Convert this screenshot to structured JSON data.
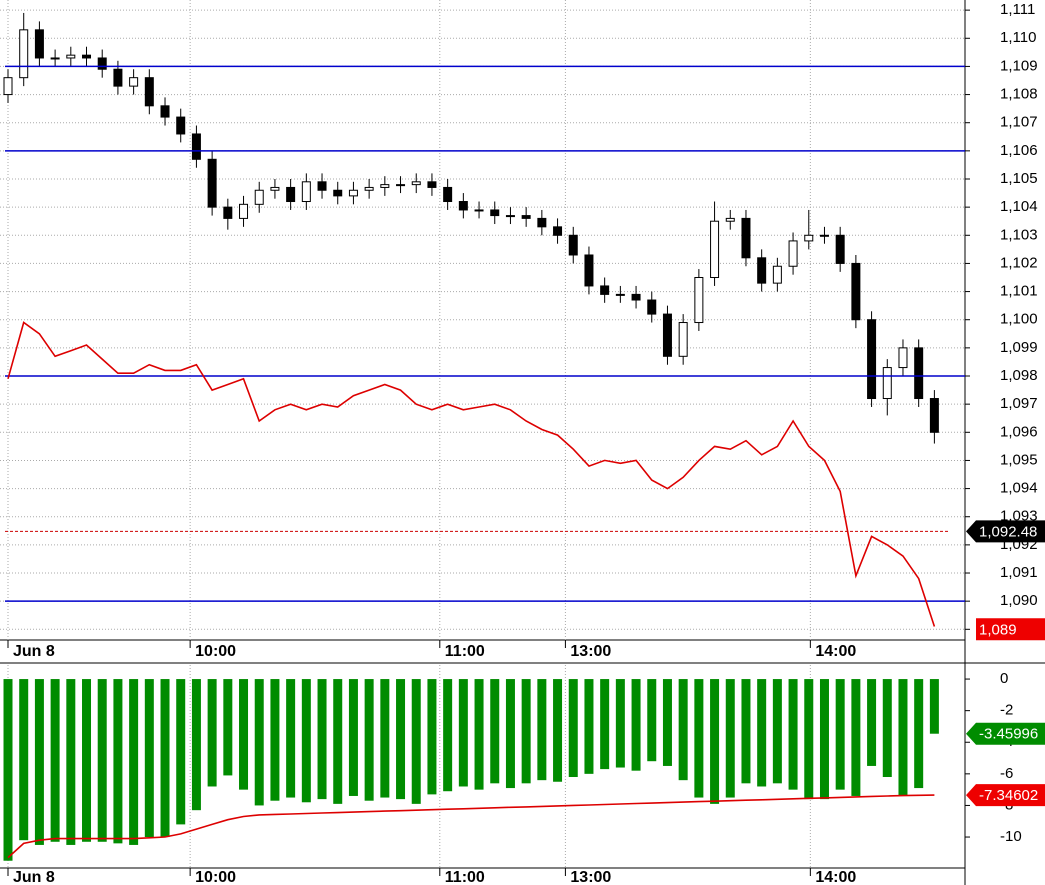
{
  "chart_data": [
    {
      "type": "candlestick",
      "xlim": [
        -0.51,
        60.95
      ],
      "xticks": [
        {
          "value": 0,
          "label": "Jun 8"
        },
        {
          "value": 11.6,
          "label": "10:00"
        },
        {
          "value": 27.5,
          "label": "11:00"
        },
        {
          "value": 35.5,
          "label": "13:00"
        },
        {
          "value": 51.1,
          "label": "14:00"
        }
      ],
      "ylim": [
        1088.62,
        1111.36
      ],
      "yticks": [
        {
          "value": 1089,
          "label": "1,089"
        },
        {
          "value": 1090,
          "label": "1,090"
        },
        {
          "value": 1091,
          "label": "1,091"
        },
        {
          "value": 1092,
          "label": "1,092"
        },
        {
          "value": 1093,
          "label": "1,093"
        },
        {
          "value": 1094,
          "label": "1,094"
        },
        {
          "value": 1095,
          "label": "1,095"
        },
        {
          "value": 1096,
          "label": "1,096"
        },
        {
          "value": 1097,
          "label": "1,097"
        },
        {
          "value": 1098,
          "label": "1,098"
        },
        {
          "value": 1099,
          "label": "1,099"
        },
        {
          "value": 1100,
          "label": "1,100"
        },
        {
          "value": 1101,
          "label": "1,101"
        },
        {
          "value": 1102,
          "label": "1,102"
        },
        {
          "value": 1103,
          "label": "1,103"
        },
        {
          "value": 1104,
          "label": "1,104"
        },
        {
          "value": 1105,
          "label": "1,105"
        },
        {
          "value": 1106,
          "label": "1,106"
        },
        {
          "value": 1107,
          "label": "1,107"
        },
        {
          "value": 1108,
          "label": "1,108"
        },
        {
          "value": 1109,
          "label": "1,109"
        },
        {
          "value": 1110,
          "label": "1,110"
        },
        {
          "value": 1111,
          "label": "1,111"
        }
      ],
      "grid": true,
      "open": [
        1108.0,
        1108.6,
        1110.3,
        1109.3,
        1109.3,
        1109.4,
        1109.3,
        1108.9,
        1108.3,
        1108.6,
        1107.6,
        1107.2,
        1106.6,
        1105.7,
        1104.0,
        1103.6,
        1104.1,
        1104.6,
        1104.7,
        1104.2,
        1104.9,
        1104.6,
        1104.4,
        1104.6,
        1104.7,
        1104.8,
        1104.8,
        1104.9,
        1104.7,
        1104.2,
        1103.9,
        1103.9,
        1103.7,
        1103.7,
        1103.6,
        1103.3,
        1103.0,
        1102.3,
        1101.2,
        1100.9,
        1100.9,
        1100.7,
        1100.2,
        1098.7,
        1099.9,
        1101.5,
        1103.5,
        1103.6,
        1102.2,
        1101.3,
        1101.9,
        1102.8,
        1103.0,
        1103.0,
        1102.0,
        1100.0,
        1097.2,
        1098.3,
        1099.0,
        1097.2
      ],
      "high": [
        1108.9,
        1110.9,
        1110.6,
        1109.6,
        1109.7,
        1109.7,
        1109.6,
        1109.2,
        1108.9,
        1108.9,
        1107.9,
        1107.5,
        1106.9,
        1106.0,
        1104.3,
        1104.4,
        1104.9,
        1105.0,
        1105.0,
        1105.2,
        1105.2,
        1104.9,
        1104.9,
        1105.0,
        1105.1,
        1105.1,
        1105.2,
        1105.2,
        1105.0,
        1104.5,
        1104.2,
        1104.2,
        1104.0,
        1104.0,
        1103.9,
        1103.6,
        1103.3,
        1102.6,
        1101.5,
        1101.2,
        1101.2,
        1101.0,
        1100.5,
        1100.2,
        1101.8,
        1104.2,
        1103.9,
        1103.9,
        1102.5,
        1102.2,
        1103.1,
        1103.9,
        1103.3,
        1103.3,
        1102.3,
        1100.3,
        1098.6,
        1099.3,
        1099.3,
        1097.5
      ],
      "low": [
        1107.7,
        1108.3,
        1109.0,
        1109.0,
        1109.0,
        1109.0,
        1108.6,
        1108.0,
        1108.0,
        1107.3,
        1106.9,
        1106.3,
        1105.4,
        1103.7,
        1103.2,
        1103.3,
        1103.8,
        1104.3,
        1103.9,
        1103.9,
        1104.3,
        1104.1,
        1104.1,
        1104.3,
        1104.4,
        1104.5,
        1104.5,
        1104.4,
        1103.9,
        1103.6,
        1103.6,
        1103.4,
        1103.4,
        1103.3,
        1103.0,
        1102.7,
        1102.0,
        1100.9,
        1100.6,
        1100.6,
        1100.4,
        1099.9,
        1098.4,
        1098.4,
        1099.6,
        1101.2,
        1103.2,
        1101.9,
        1101.0,
        1101.0,
        1101.6,
        1102.5,
        1102.7,
        1101.7,
        1099.7,
        1096.9,
        1096.6,
        1098.0,
        1096.9,
        1095.6
      ],
      "close": [
        1108.6,
        1110.3,
        1109.3,
        1109.3,
        1109.4,
        1109.3,
        1108.9,
        1108.3,
        1108.6,
        1107.6,
        1107.2,
        1106.6,
        1105.7,
        1104.0,
        1103.6,
        1104.1,
        1104.6,
        1104.7,
        1104.2,
        1104.9,
        1104.6,
        1104.4,
        1104.6,
        1104.7,
        1104.8,
        1104.8,
        1104.9,
        1104.7,
        1104.2,
        1103.9,
        1103.9,
        1103.7,
        1103.7,
        1103.6,
        1103.3,
        1103.0,
        1102.3,
        1101.2,
        1100.9,
        1100.9,
        1100.7,
        1100.2,
        1098.7,
        1099.9,
        1101.5,
        1103.5,
        1103.6,
        1102.2,
        1101.3,
        1101.9,
        1102.8,
        1103.0,
        1103.0,
        1102.0,
        1100.0,
        1097.2,
        1098.3,
        1099.0,
        1097.2,
        1096.0
      ],
      "line": {
        "color": "#dd0000",
        "values": [
          1097.9,
          1099.9,
          1099.5,
          1098.7,
          1098.9,
          1099.1,
          1098.6,
          1098.1,
          1098.1,
          1098.4,
          1098.2,
          1098.2,
          1098.4,
          1097.5,
          1097.7,
          1097.9,
          1096.4,
          1096.8,
          1097.0,
          1096.8,
          1097.0,
          1096.9,
          1097.3,
          1097.5,
          1097.7,
          1097.5,
          1097.0,
          1096.8,
          1097.0,
          1096.8,
          1096.9,
          1097.0,
          1096.8,
          1096.4,
          1096.1,
          1095.9,
          1095.4,
          1094.8,
          1095.0,
          1094.9,
          1095.0,
          1094.3,
          1094.0,
          1094.4,
          1095.0,
          1095.5,
          1095.4,
          1095.7,
          1095.2,
          1095.5,
          1096.4,
          1095.5,
          1095.0,
          1093.9,
          1090.9,
          1092.3,
          1092.0,
          1091.6,
          1090.8,
          1089.1
        ]
      },
      "hlines": {
        "color": "#0000cc",
        "values": [
          1109,
          1106,
          1098,
          1090
        ]
      },
      "tags": [
        {
          "value": 1092.48,
          "label": "1,092.48",
          "color": "#000000",
          "arrow": true,
          "line_color": "#cc0000"
        },
        {
          "value": 1089,
          "label": "1,089",
          "color": "#ee0000",
          "arrow": false
        }
      ]
    },
    {
      "type": "bar",
      "xlim": [
        -0.51,
        60.95
      ],
      "xticks": [
        {
          "value": 0,
          "label": "Jun 8"
        },
        {
          "value": 11.6,
          "label": "10:00"
        },
        {
          "value": 27.5,
          "label": "11:00"
        },
        {
          "value": 35.5,
          "label": "13:00"
        },
        {
          "value": 51.1,
          "label": "14:00"
        }
      ],
      "ylim": [
        -11.96,
        0.89
      ],
      "yticks": [
        0,
        -2,
        -4,
        -6,
        -8,
        -10
      ],
      "grid": false,
      "color": "#008c00",
      "values": [
        -11.5,
        -10.2,
        -10.5,
        -10.3,
        -10.5,
        -10.3,
        -10.3,
        -10.4,
        -10.5,
        -10.0,
        -10.0,
        -9.2,
        -8.3,
        -6.8,
        -6.1,
        -7.0,
        -8.0,
        -7.7,
        -7.5,
        -7.8,
        -7.6,
        -7.9,
        -7.4,
        -7.7,
        -7.5,
        -7.6,
        -7.9,
        -7.3,
        -7.1,
        -6.8,
        -7.0,
        -6.6,
        -6.9,
        -6.6,
        -6.4,
        -6.5,
        -6.2,
        -6.0,
        -5.7,
        -5.6,
        -5.8,
        -5.2,
        -5.5,
        -6.4,
        -7.5,
        -7.9,
        -7.5,
        -6.6,
        -6.8,
        -6.6,
        -7.0,
        -7.6,
        -7.6,
        -7.0,
        -7.4,
        -5.5,
        -6.2,
        -7.4,
        -6.9,
        -3.45996
      ],
      "line": {
        "color": "#dd0000",
        "values": [
          -11.3,
          -10.4,
          -10.2,
          -10.1,
          -10.1,
          -10.1,
          -10.1,
          -10.1,
          -10.1,
          -10.05,
          -10.0,
          -9.8,
          -9.5,
          -9.2,
          -8.9,
          -8.7,
          -8.6,
          -8.57,
          -8.54,
          -8.51,
          -8.48,
          -8.45,
          -8.42,
          -8.39,
          -8.36,
          -8.33,
          -8.3,
          -8.27,
          -8.24,
          -8.21,
          -8.18,
          -8.15,
          -8.12,
          -8.09,
          -8.06,
          -8.03,
          -8.0,
          -7.97,
          -7.94,
          -7.91,
          -7.88,
          -7.85,
          -7.82,
          -7.79,
          -7.76,
          -7.73,
          -7.7,
          -7.67,
          -7.64,
          -7.61,
          -7.58,
          -7.55,
          -7.52,
          -7.49,
          -7.46,
          -7.43,
          -7.4,
          -7.38,
          -7.36,
          -7.34602
        ]
      },
      "tags": [
        {
          "value": -3.45996,
          "color": "#008c00",
          "arrow": true
        },
        {
          "value": -7.34602,
          "color": "#ee0000",
          "arrow": true
        }
      ]
    }
  ]
}
